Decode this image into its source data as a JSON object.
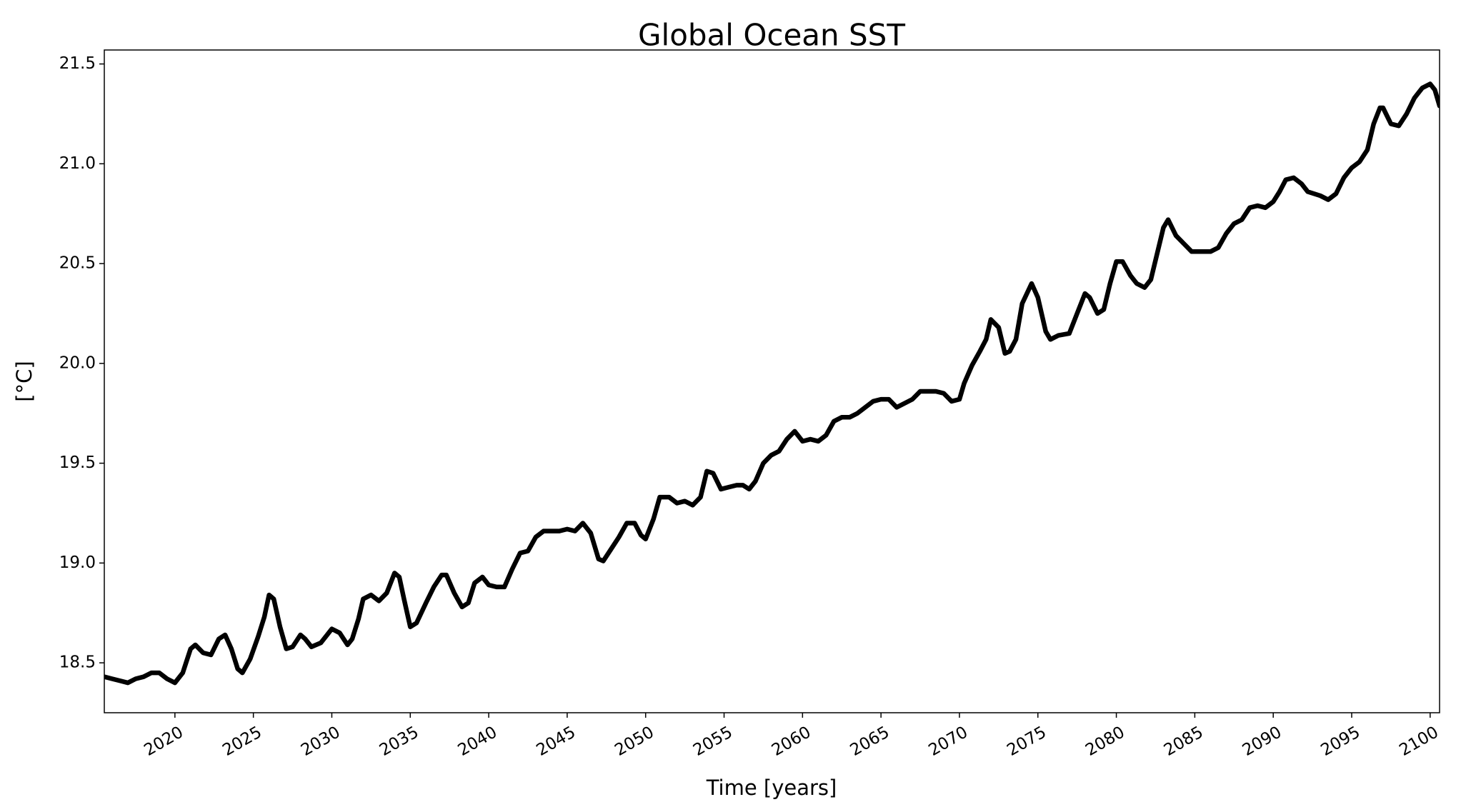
{
  "chart_data": {
    "type": "line",
    "title": "Global Ocean SST",
    "xlabel": "Time [years]",
    "ylabel": "[°C]",
    "x": [
      2015.5,
      2016,
      2016.5,
      2017,
      2017.5,
      2018,
      2018.5,
      2019,
      2019.5,
      2020,
      2020.5,
      2021,
      2021.3,
      2021.8,
      2022.3,
      2022.8,
      2023.2,
      2023.6,
      2024,
      2024.3,
      2024.8,
      2025.3,
      2025.7,
      2026,
      2026.3,
      2026.7,
      2027.1,
      2027.5,
      2028,
      2028.3,
      2028.7,
      2029.3,
      2029.7,
      2030,
      2030.5,
      2031,
      2031.3,
      2031.7,
      2032,
      2032.5,
      2033,
      2033.5,
      2034,
      2034.3,
      2034.6,
      2035,
      2035.4,
      2036,
      2036.5,
      2037,
      2037.3,
      2037.8,
      2038.3,
      2038.7,
      2039.1,
      2039.6,
      2040,
      2040.5,
      2041,
      2041.5,
      2042,
      2042.5,
      2043,
      2043.5,
      2044,
      2044.5,
      2045,
      2045.5,
      2046,
      2046.5,
      2047,
      2047.3,
      2047.8,
      2048.3,
      2048.8,
      2049.3,
      2049.7,
      2050,
      2050.5,
      2050.9,
      2051.5,
      2052,
      2052.5,
      2053,
      2053.5,
      2053.9,
      2054.3,
      2054.8,
      2055.3,
      2055.8,
      2056.2,
      2056.6,
      2057,
      2057.5,
      2058,
      2058.5,
      2059,
      2059.5,
      2060,
      2060.5,
      2061,
      2061.5,
      2062,
      2062.5,
      2063,
      2063.5,
      2064,
      2064.5,
      2065,
      2065.5,
      2066,
      2066.5,
      2067,
      2067.5,
      2068,
      2068.5,
      2069,
      2069.5,
      2070,
      2070.3,
      2070.8,
      2071.3,
      2071.7,
      2072,
      2072.5,
      2072.9,
      2073.2,
      2073.6,
      2074,
      2074.6,
      2075,
      2075.5,
      2075.8,
      2076.3,
      2077,
      2077.5,
      2078,
      2078.3,
      2078.8,
      2079.2,
      2079.6,
      2080,
      2080.4,
      2080.9,
      2081.3,
      2081.8,
      2082.2,
      2082.6,
      2083,
      2083.3,
      2083.8,
      2084.3,
      2084.8,
      2085.5,
      2086,
      2086.5,
      2087,
      2087.5,
      2088,
      2088.5,
      2089,
      2089.5,
      2090,
      2090.4,
      2090.8,
      2091.3,
      2091.8,
      2092.2,
      2093,
      2093.5,
      2094,
      2094.5,
      2095,
      2095.5,
      2096,
      2096.4,
      2096.8,
      2097,
      2097.5,
      2098,
      2098.5,
      2099,
      2099.5,
      2100,
      2100.3,
      2100.6
    ],
    "series": [
      {
        "color": "#000000",
        "values": [
          18.43,
          18.42,
          18.41,
          18.4,
          18.42,
          18.43,
          18.45,
          18.45,
          18.42,
          18.4,
          18.45,
          18.57,
          18.59,
          18.55,
          18.54,
          18.62,
          18.64,
          18.57,
          18.47,
          18.45,
          18.52,
          18.63,
          18.73,
          18.84,
          18.82,
          18.68,
          18.57,
          18.58,
          18.64,
          18.62,
          18.58,
          18.6,
          18.64,
          18.67,
          18.65,
          18.59,
          18.62,
          18.72,
          18.82,
          18.84,
          18.81,
          18.85,
          18.95,
          18.93,
          18.82,
          18.68,
          18.7,
          18.8,
          18.88,
          18.94,
          18.94,
          18.85,
          18.78,
          18.8,
          18.9,
          18.93,
          18.89,
          18.88,
          18.88,
          18.97,
          19.05,
          19.06,
          19.13,
          19.16,
          19.16,
          19.16,
          19.17,
          19.16,
          19.2,
          19.15,
          19.02,
          19.01,
          19.07,
          19.13,
          19.2,
          19.2,
          19.14,
          19.12,
          19.22,
          19.33,
          19.33,
          19.3,
          19.31,
          19.29,
          19.33,
          19.46,
          19.45,
          19.37,
          19.38,
          19.39,
          19.39,
          19.37,
          19.41,
          19.5,
          19.54,
          19.56,
          19.62,
          19.66,
          19.61,
          19.62,
          19.61,
          19.64,
          19.71,
          19.73,
          19.73,
          19.75,
          19.78,
          19.81,
          19.82,
          19.82,
          19.78,
          19.8,
          19.82,
          19.86,
          19.86,
          19.86,
          19.85,
          19.81,
          19.82,
          19.9,
          19.99,
          20.06,
          20.12,
          20.22,
          20.18,
          20.05,
          20.06,
          20.12,
          20.3,
          20.4,
          20.33,
          20.16,
          20.12,
          20.14,
          20.15,
          20.25,
          20.35,
          20.33,
          20.25,
          20.27,
          20.4,
          20.51,
          20.51,
          20.44,
          20.4,
          20.38,
          20.42,
          20.55,
          20.68,
          20.72,
          20.64,
          20.6,
          20.56,
          20.56,
          20.56,
          20.58,
          20.65,
          20.7,
          20.72,
          20.78,
          20.79,
          20.78,
          20.81,
          20.86,
          20.92,
          20.93,
          20.9,
          20.86,
          20.84,
          20.82,
          20.85,
          20.93,
          20.98,
          21.01,
          21.07,
          21.2,
          21.28,
          21.28,
          21.2,
          21.19,
          21.25,
          21.33,
          21.38,
          21.4,
          21.37,
          21.29
        ]
      }
    ],
    "xlim": [
      2015.5,
      2100.6
    ],
    "xticks": [
      2020,
      2025,
      2030,
      2035,
      2040,
      2045,
      2050,
      2055,
      2060,
      2065,
      2070,
      2075,
      2080,
      2085,
      2090,
      2095,
      2100
    ],
    "ylim": [
      18.25,
      21.57
    ],
    "yticks": [
      18.5,
      {
        "value": 19,
        "label": "19.0"
      },
      19.5,
      {
        "value": 20,
        "label": "20.0"
      },
      20.5,
      {
        "value": 21,
        "label": "21.0"
      },
      21.5
    ],
    "grid": false
  }
}
